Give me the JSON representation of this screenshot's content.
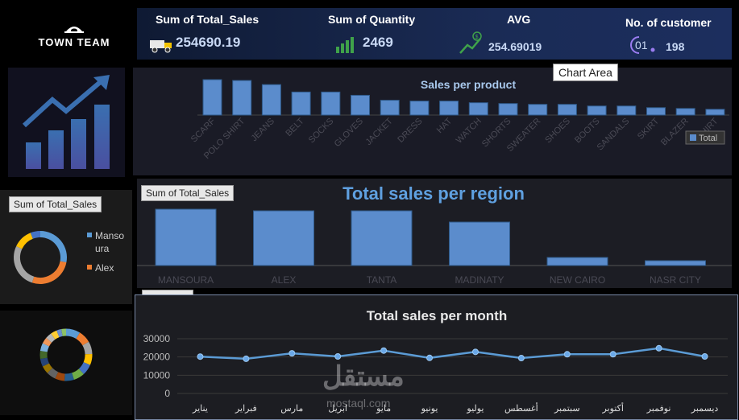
{
  "logo": {
    "brand": "TOWN TEAM"
  },
  "kpis": [
    {
      "label": "Sum of Total_Sales",
      "value": "254690.19",
      "icon": "delivery-truck-icon"
    },
    {
      "label": "Sum of Quantity",
      "value": "2469",
      "icon": "bar-growth-icon"
    },
    {
      "label": "AVG",
      "value": "254.69019",
      "icon": "money-growth-icon"
    },
    {
      "label": "No. of customer",
      "value": "198",
      "badge": "01",
      "icon": "customer-count-icon"
    }
  ],
  "tooltip": "Chart Area",
  "colors": {
    "bar": "#5b8ccc",
    "line": "#5b9bd5",
    "accent": "#ed7d31",
    "title": "#5fa0e0"
  },
  "product_chart": {
    "title": "Sales per product",
    "legend": "Total",
    "chart_data": {
      "type": "bar",
      "categories": [
        "SCARF",
        "POLO SHIRT",
        "JEANS",
        "BELT",
        "SOCKS",
        "GLOVES",
        "JACKET",
        "DRESS",
        "HAT",
        "WATCH",
        "SHORTS",
        "SWEATER",
        "SHOES",
        "BOOTS",
        "SANDALS",
        "SKIRT",
        "BLAZER",
        "T-SHIRT"
      ],
      "values": [
        43,
        42,
        37,
        28,
        28,
        24,
        18,
        17,
        17,
        15,
        14,
        13,
        13,
        11,
        11,
        9,
        8,
        7
      ]
    }
  },
  "region_chart": {
    "title": "Total sales per region",
    "tag": "Sum of Total_Sales",
    "chart_data": {
      "type": "bar",
      "categories": [
        "MANSOURA",
        "ALEX",
        "TANTA",
        "MADINATY",
        "NEW CAIRO",
        "NASR CITY"
      ],
      "values": [
        70,
        68,
        68,
        54,
        10,
        6
      ]
    }
  },
  "pie1": {
    "tag": "Sum of Total_Sales",
    "legend": [
      {
        "label": "Mansoura",
        "color": "#5b9bd5"
      },
      {
        "label": "Alex",
        "color": "#ed7d31"
      }
    ]
  },
  "month_chart": {
    "title": "Total sales per month",
    "chart_data": {
      "type": "line",
      "categories": [
        "يناير",
        "فبراير",
        "مارس",
        "ابريل",
        "مايو",
        "يونيو",
        "يوليو",
        "أغسطس",
        "سبتمبر",
        "أكتوبر",
        "نوفمبر",
        "ديسمبر"
      ],
      "values": [
        20200,
        19000,
        22000,
        20300,
        23500,
        19500,
        22800,
        19400,
        21500,
        21500,
        24800,
        20300
      ],
      "yticks": [
        "30000",
        "20000",
        "10000",
        "0"
      ],
      "ylim": [
        0,
        30000
      ]
    }
  },
  "watermark": {
    "text": "مستقل",
    "sub": "mostaql.com"
  }
}
